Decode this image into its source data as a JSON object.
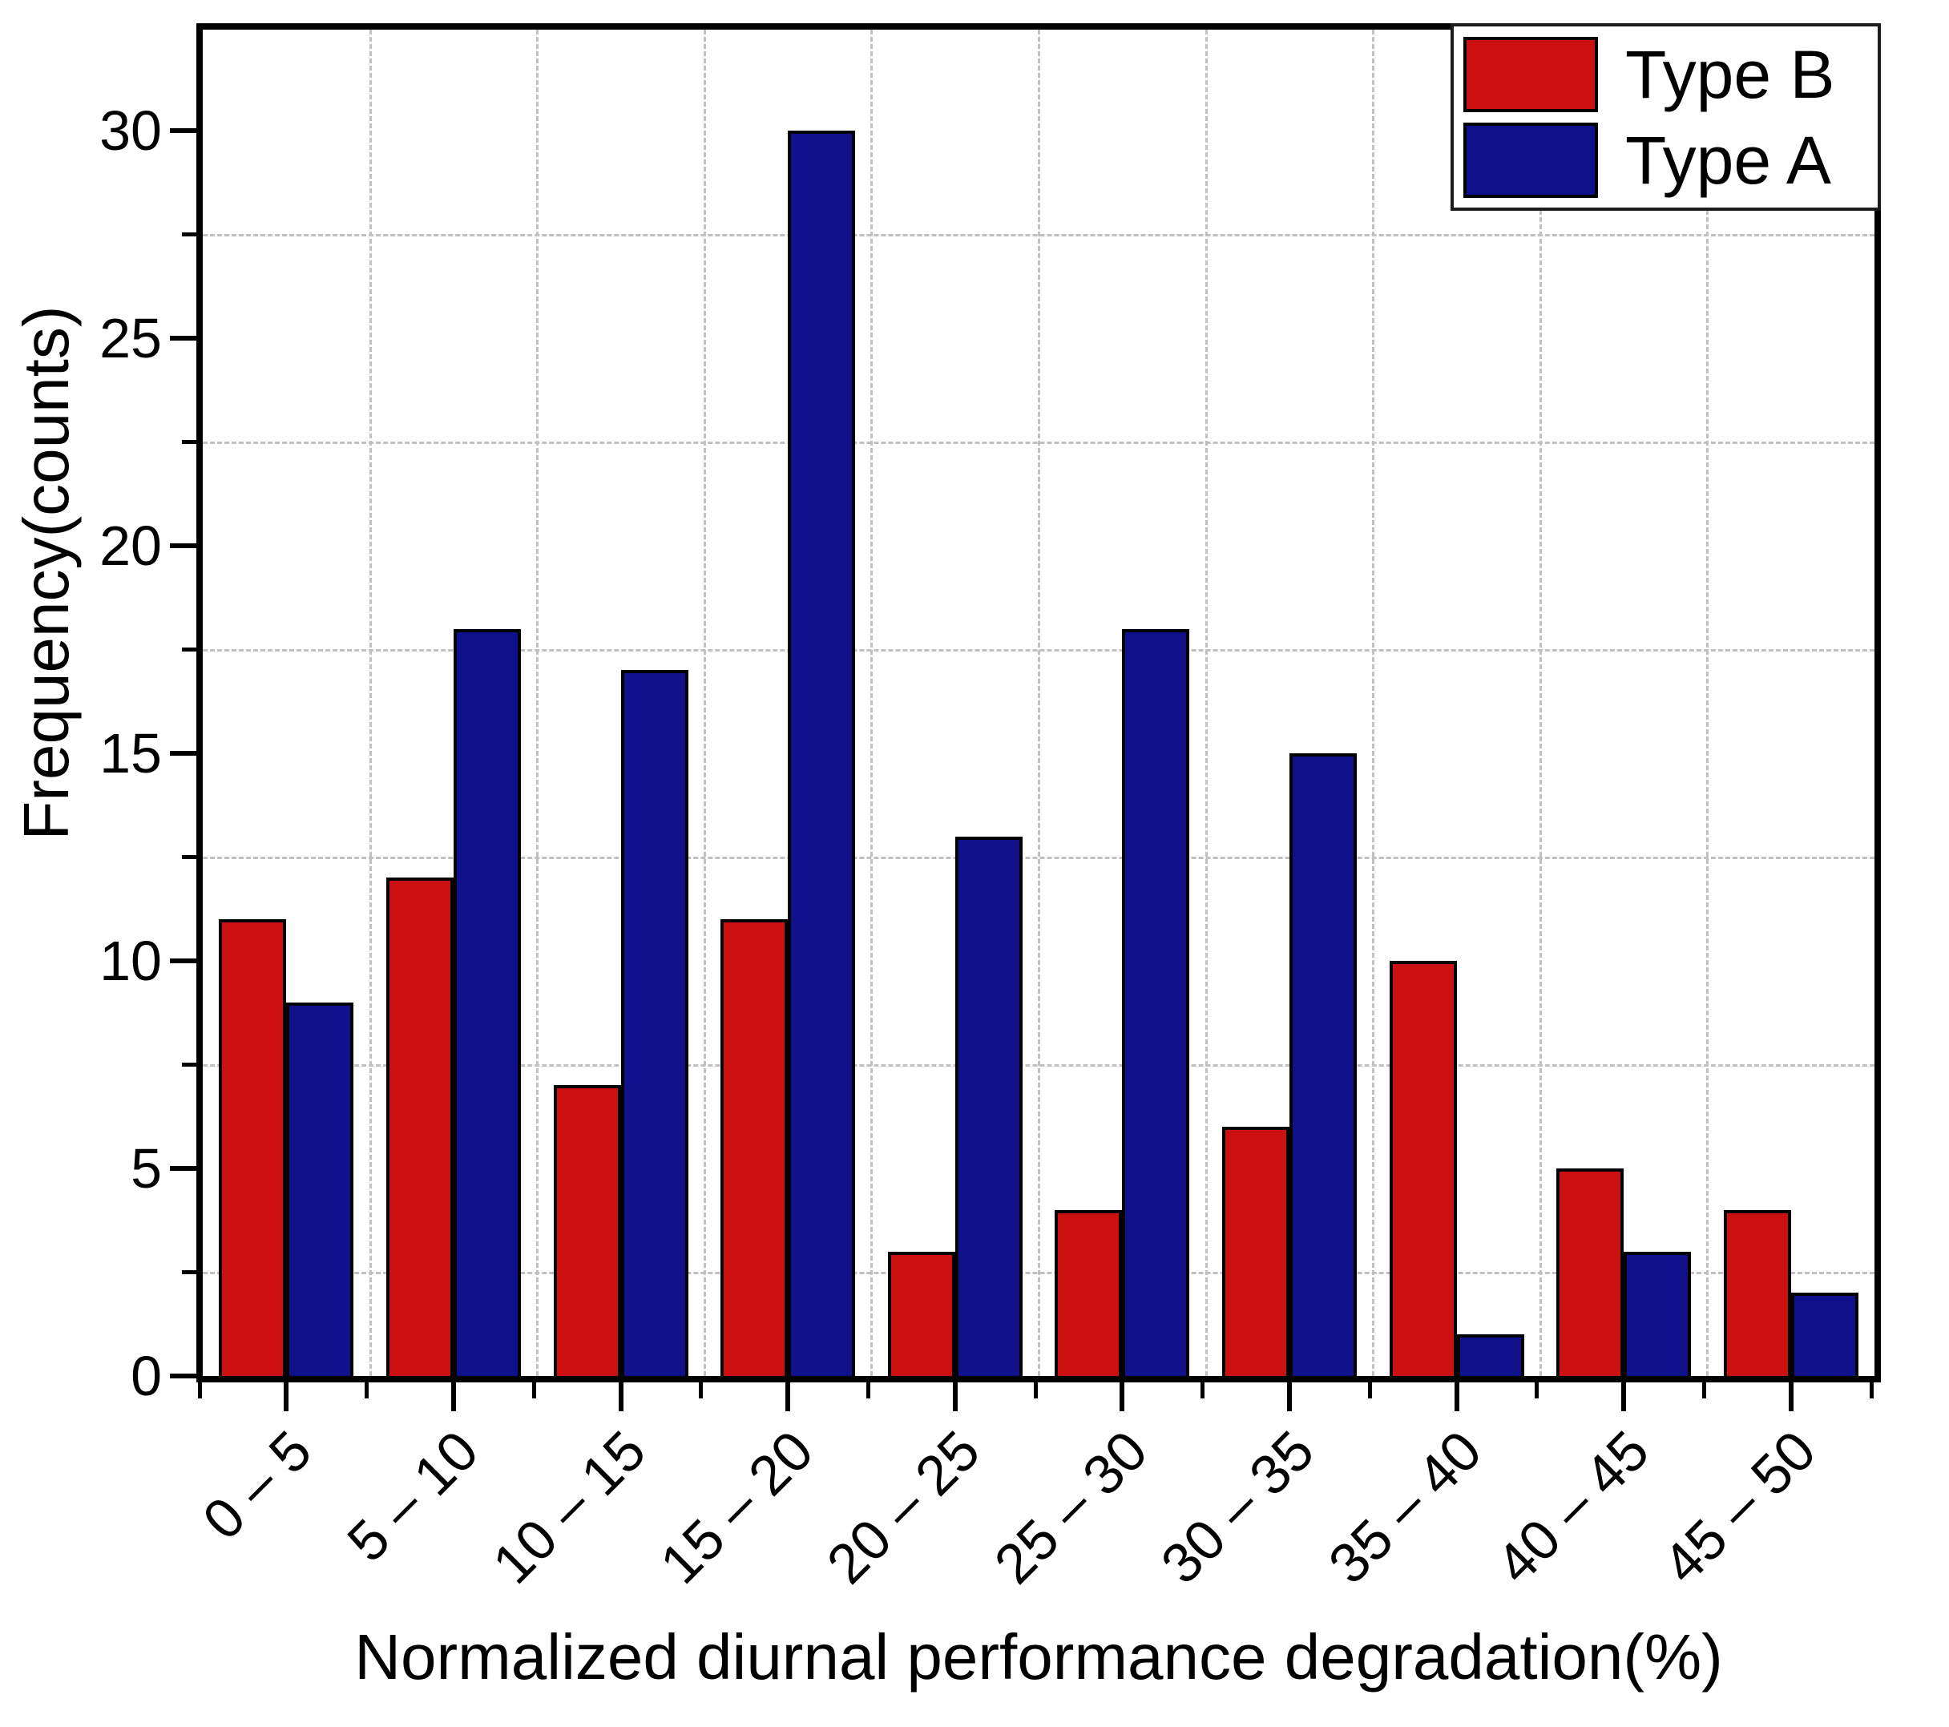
{
  "chart_data": {
    "type": "bar",
    "title": "",
    "xlabel": "Normalized diurnal performance degradation(%)",
    "ylabel": "Frequency(counts)",
    "categories": [
      "0 – 5",
      "5 – 10",
      "10 – 15",
      "15 – 20",
      "20 – 25",
      "25 – 30",
      "30 – 35",
      "35 – 40",
      "40 – 45",
      "45 – 50"
    ],
    "series": [
      {
        "name": "Type B",
        "color": "#cc1010",
        "values": [
          11,
          12,
          7,
          11,
          3,
          4,
          6,
          10,
          5,
          4
        ]
      },
      {
        "name": "Type A",
        "color": "#10108a",
        "values": [
          9,
          18,
          17,
          30,
          13,
          18,
          15,
          1,
          3,
          2
        ]
      }
    ],
    "ylim": [
      0,
      32.3
    ],
    "y_major_ticks": [
      0,
      5,
      10,
      15,
      20,
      25,
      30
    ],
    "y_minor_tick_step": 2.5,
    "grid": "dashed gray gridlines at minor y positions and at category boundaries",
    "legend_position": "top-right"
  },
  "axes": {
    "y_tick_labels": [
      "0",
      "5",
      "10",
      "15",
      "20",
      "25",
      "30"
    ],
    "x_tick_labels": [
      "0 – 5",
      "5 – 10",
      "10 – 15",
      "15 – 20",
      "20 – 25",
      "25 – 30",
      "30 – 35",
      "35 – 40",
      "40 – 45",
      "45 – 50"
    ]
  },
  "legend": {
    "items": [
      {
        "label": "Type B",
        "color": "#cc1010"
      },
      {
        "label": "Type A",
        "color": "#10108a"
      }
    ]
  }
}
